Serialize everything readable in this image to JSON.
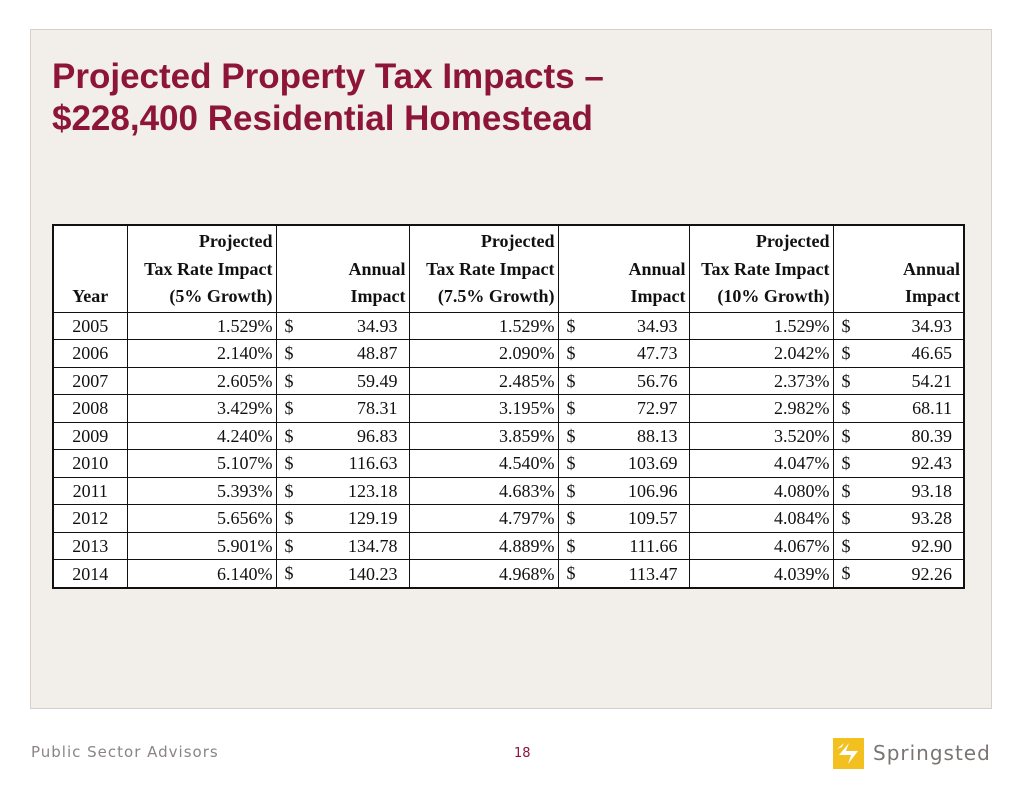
{
  "title": {
    "line1": "Projected Property Tax Impacts –",
    "line2": "$228,400 Residential Homestead"
  },
  "table": {
    "headers": {
      "year": "Year",
      "col1": [
        "Projected",
        "Tax Rate Impact",
        "(5% Growth)"
      ],
      "col2": [
        "Annual",
        "Impact"
      ],
      "col3": [
        "Projected",
        "Tax Rate Impact",
        "(7.5% Growth)"
      ],
      "col4": [
        "Annual",
        "Impact"
      ],
      "col5": [
        "Projected",
        "Tax Rate Impact",
        "(10% Growth)"
      ],
      "col6": [
        "Annual",
        "Impact"
      ]
    },
    "currency_symbol": "$",
    "rows": [
      {
        "year": "2005",
        "r5": "1.529%",
        "a5": "34.93",
        "r75": "1.529%",
        "a75": "34.93",
        "r10": "1.529%",
        "a10": "34.93"
      },
      {
        "year": "2006",
        "r5": "2.140%",
        "a5": "48.87",
        "r75": "2.090%",
        "a75": "47.73",
        "r10": "2.042%",
        "a10": "46.65"
      },
      {
        "year": "2007",
        "r5": "2.605%",
        "a5": "59.49",
        "r75": "2.485%",
        "a75": "56.76",
        "r10": "2.373%",
        "a10": "54.21"
      },
      {
        "year": "2008",
        "r5": "3.429%",
        "a5": "78.31",
        "r75": "3.195%",
        "a75": "72.97",
        "r10": "2.982%",
        "a10": "68.11"
      },
      {
        "year": "2009",
        "r5": "4.240%",
        "a5": "96.83",
        "r75": "3.859%",
        "a75": "88.13",
        "r10": "3.520%",
        "a10": "80.39"
      },
      {
        "year": "2010",
        "r5": "5.107%",
        "a5": "116.63",
        "r75": "4.540%",
        "a75": "103.69",
        "r10": "4.047%",
        "a10": "92.43"
      },
      {
        "year": "2011",
        "r5": "5.393%",
        "a5": "123.18",
        "r75": "4.683%",
        "a75": "106.96",
        "r10": "4.080%",
        "a10": "93.18"
      },
      {
        "year": "2012",
        "r5": "5.656%",
        "a5": "129.19",
        "r75": "4.797%",
        "a75": "109.57",
        "r10": "4.084%",
        "a10": "93.28"
      },
      {
        "year": "2013",
        "r5": "5.901%",
        "a5": "134.78",
        "r75": "4.889%",
        "a75": "111.66",
        "r10": "4.067%",
        "a10": "92.90"
      },
      {
        "year": "2014",
        "r5": "6.140%",
        "a5": "140.23",
        "r75": "4.968%",
        "a75": "113.47",
        "r10": "4.039%",
        "a10": "92.26"
      }
    ]
  },
  "footer": {
    "left_text": "Public Sector Advisors",
    "page_number": "18",
    "logo_text": "Springsted",
    "logo_icon": "lightning-bolt-icon"
  },
  "colors": {
    "title": "#8c1538",
    "panel_bg": "#f2eeea",
    "logo_mark": "#f2c11f",
    "footer_text": "#8a8582"
  }
}
